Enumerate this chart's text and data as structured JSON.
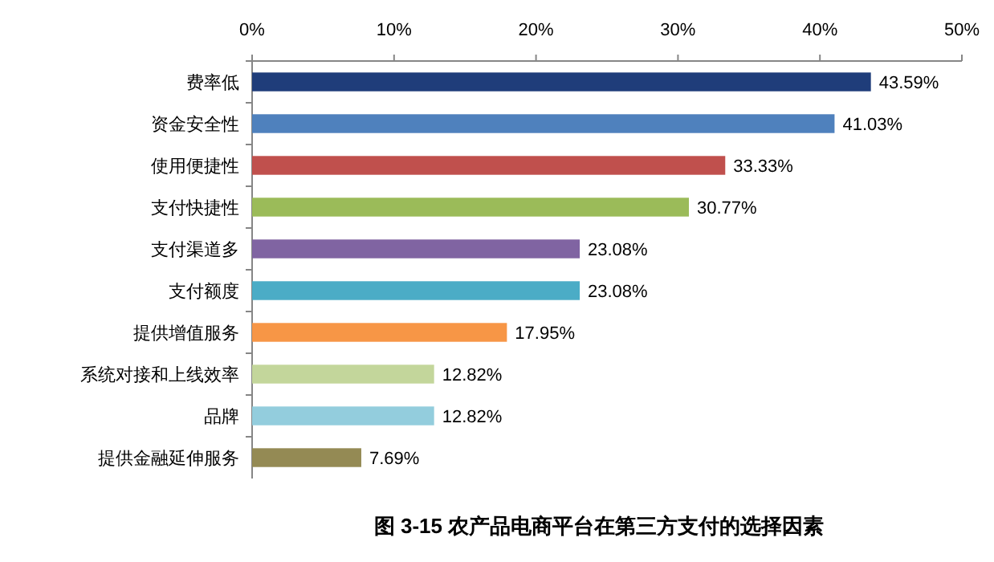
{
  "chart_data": {
    "type": "bar",
    "orientation": "horizontal",
    "title": "图 3-15 农产品电商平台在第三方支付的选择因素",
    "categories": [
      "费率低",
      "资金安全性",
      "使用便捷性",
      "支付快捷性",
      "支付渠道多",
      "支付额度",
      "提供增值服务",
      "系统对接和上线效率",
      "品牌",
      "提供金融延伸服务"
    ],
    "values": [
      43.59,
      41.03,
      33.33,
      30.77,
      23.08,
      23.08,
      17.95,
      12.82,
      12.82,
      7.69
    ],
    "value_labels": [
      "43.59%",
      "41.03%",
      "33.33%",
      "30.77%",
      "23.08%",
      "23.08%",
      "17.95%",
      "12.82%",
      "12.82%",
      "7.69%"
    ],
    "colors": [
      "#1f3d7a",
      "#4f81bd",
      "#c0504d",
      "#9bbb59",
      "#8064a2",
      "#4bacc6",
      "#f79646",
      "#c3d69b",
      "#93cddd",
      "#948a54"
    ],
    "xlim": [
      0,
      50
    ],
    "xticks": [
      {
        "value": 0,
        "label": "0%"
      },
      {
        "value": 10,
        "label": "10%"
      },
      {
        "value": 20,
        "label": "20%"
      },
      {
        "value": 30,
        "label": "30%"
      },
      {
        "value": 40,
        "label": "40%"
      },
      {
        "value": 50,
        "label": "50%"
      }
    ]
  }
}
